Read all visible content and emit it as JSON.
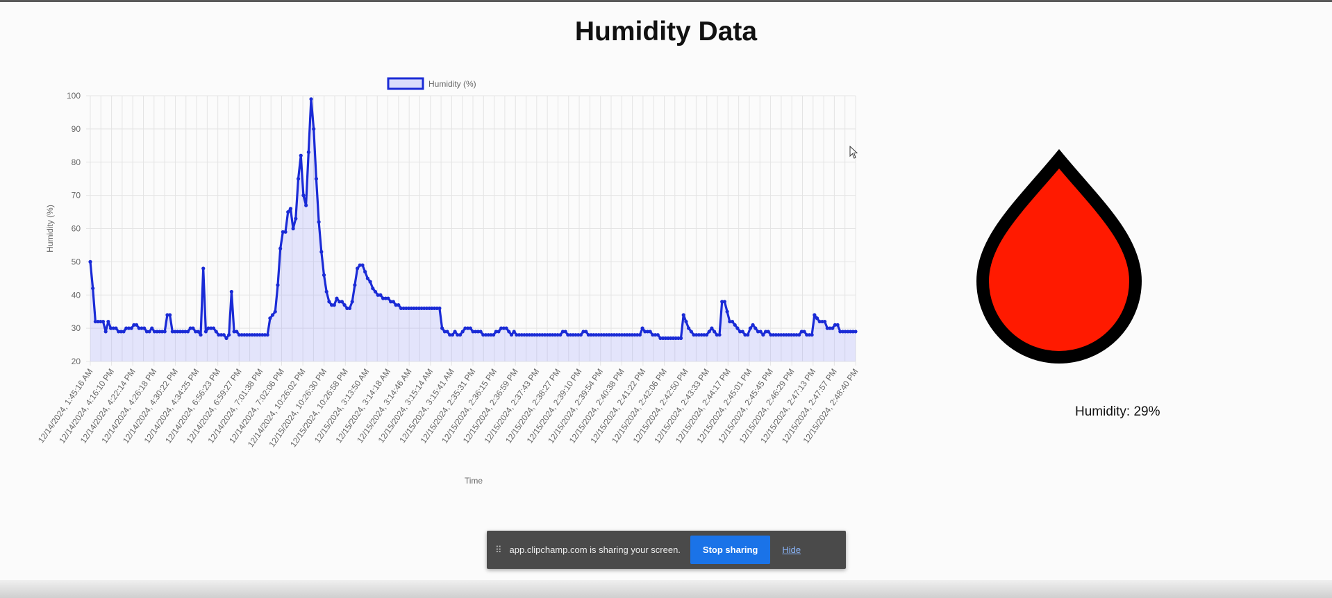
{
  "page": {
    "title": "Humidity Data"
  },
  "readout": {
    "text": "Humidity: 29%",
    "value_percent": 29
  },
  "drop_icon": {
    "name": "water-drop-icon",
    "fill": "#ff1a00",
    "stroke": "#000000"
  },
  "share_bar": {
    "message": "app.clipchamp.com is sharing your screen.",
    "stop_label": "Stop sharing",
    "hide_label": "Hide",
    "grip": "⠿"
  },
  "chart_data": {
    "type": "line",
    "title": "",
    "xlabel": "Time",
    "ylabel": "Humidity (%)",
    "ylim": [
      20,
      100
    ],
    "yticks": [
      20,
      30,
      40,
      50,
      60,
      70,
      80,
      90,
      100
    ],
    "grid": true,
    "legend": "top-center",
    "series": [
      {
        "name": "Humidity (%)",
        "color": "#1a2bd6",
        "fill": "rgba(120,130,255,0.18)",
        "values": [
          50,
          42,
          32,
          32,
          32,
          32,
          29,
          32,
          30,
          30,
          30,
          29,
          29,
          29,
          30,
          30,
          30,
          31,
          31,
          30,
          30,
          30,
          29,
          29,
          30,
          29,
          29,
          29,
          29,
          29,
          34,
          34,
          29,
          29,
          29,
          29,
          29,
          29,
          29,
          30,
          30,
          29,
          29,
          28,
          48,
          29,
          30,
          30,
          30,
          29,
          28,
          28,
          28,
          27,
          28,
          41,
          29,
          29,
          28,
          28,
          28,
          28,
          28,
          28,
          28,
          28,
          28,
          28,
          28,
          28,
          33,
          34,
          35,
          43,
          54,
          59,
          59,
          65,
          66,
          60,
          63,
          75,
          82,
          70,
          67,
          83,
          99,
          90,
          75,
          62,
          53,
          46,
          41,
          38,
          37,
          37,
          39,
          38,
          38,
          37,
          36,
          36,
          38,
          43,
          48,
          49,
          49,
          47,
          45,
          44,
          42,
          41,
          40,
          40,
          39,
          39,
          39,
          38,
          38,
          37,
          37,
          36,
          36,
          36,
          36,
          36,
          36,
          36,
          36,
          36,
          36,
          36,
          36,
          36,
          36,
          36,
          36,
          30,
          29,
          29,
          28,
          28,
          29,
          28,
          28,
          29,
          30,
          30,
          30,
          29,
          29,
          29,
          29,
          28,
          28,
          28,
          28,
          28,
          29,
          29,
          30,
          30,
          30,
          29,
          28,
          29,
          28,
          28,
          28,
          28,
          28,
          28,
          28,
          28,
          28,
          28,
          28,
          28,
          28,
          28,
          28,
          28,
          28,
          28,
          29,
          29,
          28,
          28,
          28,
          28,
          28,
          28,
          29,
          29,
          28,
          28,
          28,
          28,
          28,
          28,
          28,
          28,
          28,
          28,
          28,
          28,
          28,
          28,
          28,
          28,
          28,
          28,
          28,
          28,
          28,
          30,
          29,
          29,
          29,
          28,
          28,
          28,
          27,
          27,
          27,
          27,
          27,
          27,
          27,
          27,
          27,
          34,
          32,
          30,
          29,
          28,
          28,
          28,
          28,
          28,
          28,
          29,
          30,
          29,
          28,
          28,
          38,
          38,
          35,
          32,
          32,
          31,
          30,
          29,
          29,
          28,
          28,
          30,
          31,
          30,
          29,
          29,
          28,
          29,
          29,
          28,
          28,
          28,
          28,
          28,
          28,
          28,
          28,
          28,
          28,
          28,
          28,
          29,
          29,
          28,
          28,
          28,
          34,
          33,
          32,
          32,
          32,
          30,
          30,
          30,
          31,
          31,
          29,
          29,
          29,
          29,
          29,
          29,
          29
        ]
      }
    ],
    "x_tick_labels": [
      "12/14/2024, 1:45:16 AM",
      "12/14/2024, 4:16:10 PM",
      "12/14/2024, 4:22:14 PM",
      "12/14/2024, 4:26:18 PM",
      "12/14/2024, 4:30:22 PM",
      "12/14/2024, 4:34:25 PM",
      "12/14/2024, 6:56:23 PM",
      "12/14/2024, 6:59:27 PM",
      "12/14/2024, 7:01:38 PM",
      "12/14/2024, 7:02:06 PM",
      "12/14/2024, 10:26:02 PM",
      "12/15/2024, 10:26:30 PM",
      "12/15/2024, 10:26:58 PM",
      "12/15/2024, 3:13:50 AM",
      "12/15/2024, 3:14:18 AM",
      "12/15/2024, 3:14:46 AM",
      "12/15/2024, 3:15:14 AM",
      "12/15/2024, 3:15:41 AM",
      "12/15/2024, 2:35:31 PM",
      "12/15/2024, 2:36:15 PM",
      "12/15/2024, 2:36:59 PM",
      "12/15/2024, 2:37:43 PM",
      "12/15/2024, 2:38:27 PM",
      "12/15/2024, 2:39:10 PM",
      "12/15/2024, 2:39:54 PM",
      "12/15/2024, 2:40:38 PM",
      "12/15/2024, 2:41:22 PM",
      "12/15/2024, 2:42:06 PM",
      "12/15/2024, 2:42:50 PM",
      "12/15/2024, 2:43:33 PM",
      "12/15/2024, 2:44:17 PM",
      "12/15/2024, 2:45:01 PM",
      "12/15/2024, 2:45:45 PM",
      "12/15/2024, 2:46:29 PM",
      "12/15/2024, 2:47:13 PM",
      "12/15/2024, 2:47:57 PM",
      "12/15/2024, 2:48:40 PM"
    ]
  }
}
